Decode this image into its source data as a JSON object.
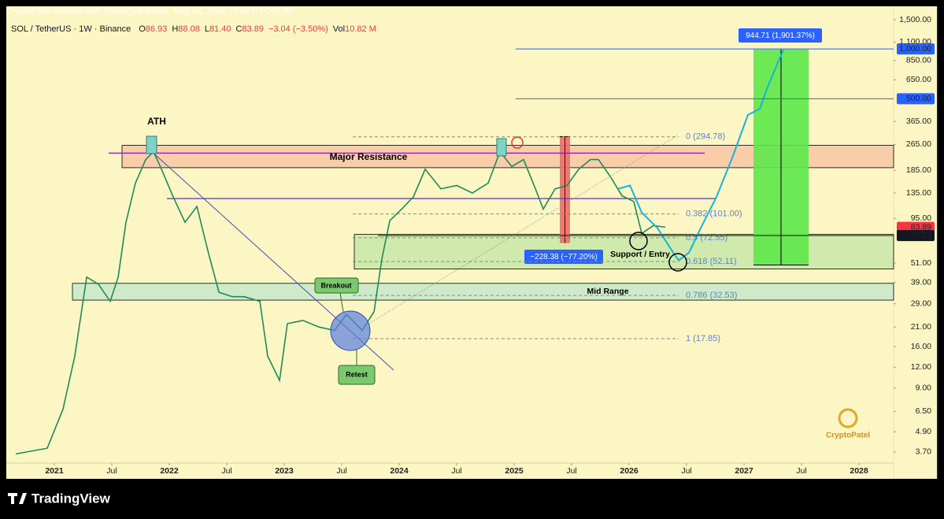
{
  "header": {
    "text": "CryptoPatel created with TradingView.com, May 02, 2026 16:02 UTC+5:30"
  },
  "chart_data": {
    "type": "line",
    "symbol": "SOL / TetherUS · 1W · Binance",
    "quote": [
      {
        "key": "O",
        "value": "86.93"
      },
      {
        "key": "H",
        "value": "88.08"
      },
      {
        "key": "L",
        "value": "81.40"
      },
      {
        "key": "C",
        "value": "83.89"
      },
      {
        "key": "",
        "value": "−3.04 (−3.50%)"
      },
      {
        "key": "Vol",
        "value": "10.82 M"
      }
    ],
    "log_scale": true,
    "grid": false,
    "xlim": [
      2020.582,
      2028.301
    ],
    "ylim": [
      3.17,
      1807
    ],
    "xticks": [
      2021,
      {
        "value": 2021.5,
        "label": "Jul"
      },
      2022,
      {
        "value": 2022.5,
        "label": "Jul"
      },
      2023,
      {
        "value": 2023.5,
        "label": "Jul"
      },
      2024,
      {
        "value": 2024.5,
        "label": "Jul"
      },
      2025,
      {
        "value": 2025.5,
        "label": "Jul"
      },
      2026,
      {
        "value": 2026.5,
        "label": "Jul"
      },
      2027,
      {
        "value": 2027.5,
        "label": "Jul"
      },
      2028
    ],
    "yticks": [
      {
        "value": 1500,
        "label": "1,500.00"
      },
      {
        "value": 1100,
        "label": "1,100.00"
      },
      {
        "value": 850,
        "label": "850.00"
      },
      {
        "value": 650,
        "label": "650.00"
      },
      {
        "value": 365,
        "label": "365.00"
      },
      {
        "value": 265,
        "label": "265.00"
      },
      {
        "value": 185,
        "label": "185.00"
      },
      {
        "value": 135,
        "label": "135.00"
      },
      {
        "value": 95,
        "label": "95.00"
      },
      {
        "value": 51,
        "label": "51.00"
      },
      {
        "value": 39,
        "label": "39.00"
      },
      {
        "value": 29,
        "label": "29.00"
      },
      {
        "value": 21,
        "label": "21.00"
      },
      {
        "value": 16,
        "label": "16.00"
      },
      {
        "value": 12,
        "label": "12.00"
      },
      {
        "value": 9,
        "label": "9.00"
      },
      {
        "value": 6.5,
        "label": "6.50"
      },
      {
        "value": 4.9,
        "label": "4.90"
      },
      {
        "value": 3.7,
        "label": "3.70"
      }
    ],
    "price_labels": [
      {
        "value": 1000,
        "label": "1,000.00",
        "color": "#2962ff"
      },
      {
        "value": 500,
        "label": "500.00",
        "color": "#2962ff"
      },
      {
        "value": 83.89,
        "label": "83.89",
        "color": "#f23645"
      },
      {
        "value": 74.72,
        "label": "74.72",
        "color": "#131722"
      }
    ],
    "series": [
      {
        "color": "#1f8a5a",
        "x": [
          2020.664,
          2020.938,
          2021.075,
          2021.178,
          2021.281,
          2021.384,
          2021.486,
          2021.555,
          2021.623,
          2021.705,
          2021.795,
          2021.863,
          2021.932,
          2022.034,
          2022.137,
          2022.24,
          2022.342,
          2022.432,
          2022.548,
          2022.651,
          2022.788,
          2022.856,
          2022.959,
          2023.027,
          2023.164,
          2023.301,
          2023.438,
          2023.541,
          2023.678,
          2023.781,
          2023.849,
          2023.918,
          2024.021,
          2024.123,
          2024.226,
          2024.363,
          2024.5,
          2024.637,
          2024.774,
          2024.877,
          2024.979,
          2025.082,
          2025.185,
          2025.253,
          2025.356,
          2025.459,
          2025.562,
          2025.664,
          2025.733,
          2025.836,
          2025.938,
          2026.041,
          2026.11,
          2026.212,
          2026.315
        ],
        "values": [
          3.6,
          3.9,
          6.7,
          14,
          42,
          38,
          30,
          42,
          90,
          155,
          215,
          240,
          188,
          128,
          90,
          112,
          58,
          34,
          32,
          32,
          30,
          14,
          10,
          22,
          23,
          21,
          20,
          25,
          20,
          26,
          54,
          92,
          108,
          128,
          188,
          143,
          150,
          135,
          155,
          240,
          195,
          215,
          143,
          108,
          143,
          150,
          188,
          215,
          215,
          170,
          130,
          120,
          77,
          86,
          84
        ]
      },
      {
        "color": "#16b4d8",
        "x": [
          2025.904,
          2026.007,
          2026.11,
          2026.247,
          2026.384,
          2026.432,
          2026.521,
          2026.623,
          2026.76,
          2026.897,
          2027.034,
          2027.137,
          2027.205,
          2027.308,
          2027.342
        ],
        "values": [
          143,
          150,
          103,
          83,
          59,
          53,
          59,
          83,
          128,
          220,
          400,
          435,
          590,
          870,
          980
        ]
      }
    ],
    "zones": [
      {
        "name": "Major Resistance",
        "low": 192,
        "high": 262,
        "color": "#f7c6a3"
      },
      {
        "name": "Mid Range",
        "low": 30.5,
        "high": 38.5,
        "color": "#c5e8c9"
      },
      {
        "name": "Support / Entry",
        "low": 47,
        "high": 76,
        "color": "#c8e6a8"
      }
    ],
    "levels": [
      {
        "value": 235,
        "color": "#8e24aa"
      },
      {
        "value": 125,
        "color": "#5e35b1"
      }
    ],
    "fib_levels": [
      {
        "value": 294.78,
        "label": "0 (294.78)"
      },
      {
        "value": 101,
        "label": "0.382 (101.00)"
      },
      {
        "value": 72.55,
        "label": "0.5 (72.55)"
      },
      {
        "value": 52.11,
        "label": "0.618 (52.11)"
      },
      {
        "value": 32.53,
        "label": "0.786 (32.53)"
      },
      {
        "value": 17.85,
        "label": "1 (17.85)"
      }
    ],
    "measures": [
      {
        "label": "944.71 (1,901.37%)",
        "from": 49.69,
        "to": 994.4,
        "color": "#5ee84a"
      },
      {
        "label": "−228.38 (−77.20%)",
        "from": 295.8,
        "to": 67.4,
        "color": "#ef6b6b"
      }
    ],
    "annotations": {
      "ath": "ATH",
      "breakout": "Breakout",
      "retest": "Retest"
    }
  },
  "watermark": "CryptoPatel",
  "footer": {
    "brand": "TradingView"
  }
}
